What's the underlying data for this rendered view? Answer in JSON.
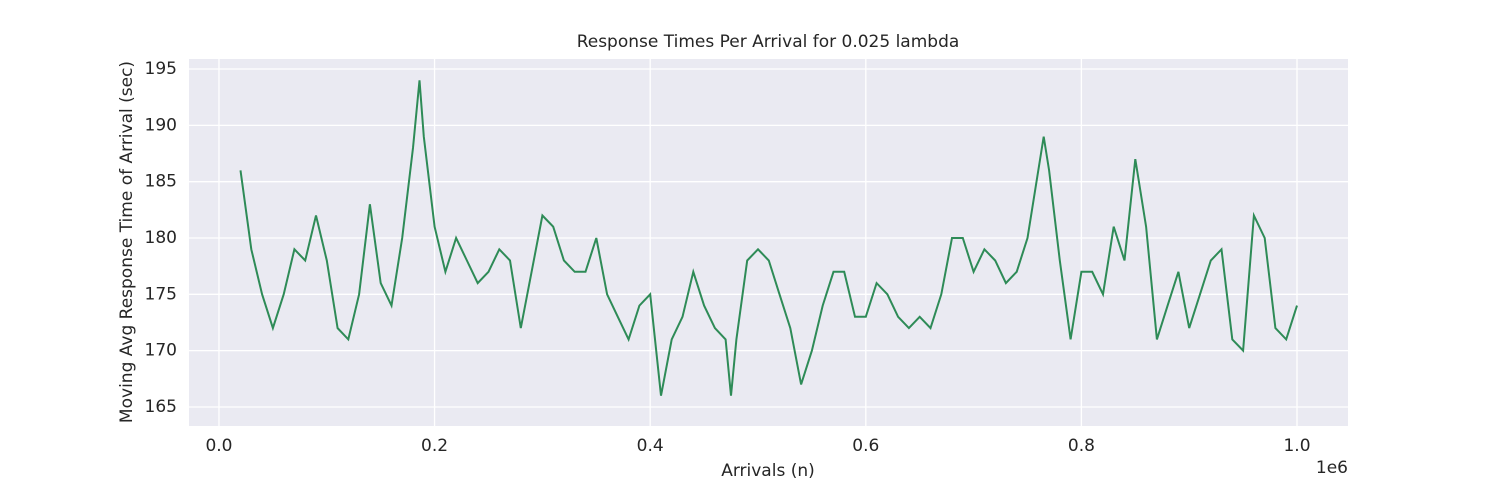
{
  "chart_data": {
    "type": "line",
    "title": "Response Times Per Arrival for 0.025 lambda",
    "xlabel": "Arrivals (n)",
    "ylabel": "Moving Avg Response Time of Arrival (sec)",
    "x_offset_label": "1e6",
    "x": [
      0.02,
      0.03,
      0.04,
      0.05,
      0.06,
      0.07,
      0.08,
      0.09,
      0.1,
      0.11,
      0.12,
      0.13,
      0.14,
      0.15,
      0.16,
      0.17,
      0.18,
      0.186,
      0.19,
      0.2,
      0.21,
      0.22,
      0.23,
      0.24,
      0.25,
      0.26,
      0.27,
      0.28,
      0.29,
      0.3,
      0.31,
      0.32,
      0.33,
      0.34,
      0.35,
      0.36,
      0.37,
      0.38,
      0.39,
      0.4,
      0.41,
      0.42,
      0.43,
      0.44,
      0.45,
      0.46,
      0.47,
      0.475,
      0.48,
      0.49,
      0.5,
      0.51,
      0.52,
      0.53,
      0.54,
      0.55,
      0.56,
      0.57,
      0.58,
      0.59,
      0.6,
      0.61,
      0.62,
      0.63,
      0.64,
      0.65,
      0.66,
      0.67,
      0.68,
      0.69,
      0.7,
      0.71,
      0.72,
      0.73,
      0.74,
      0.75,
      0.76,
      0.765,
      0.77,
      0.78,
      0.79,
      0.8,
      0.81,
      0.82,
      0.83,
      0.84,
      0.85,
      0.86,
      0.87,
      0.88,
      0.89,
      0.9,
      0.91,
      0.92,
      0.93,
      0.94,
      0.95,
      0.96,
      0.97,
      0.98,
      0.99,
      1.0
    ],
    "series": [
      {
        "color": "#2e8b57",
        "values": [
          186,
          179,
          175,
          172,
          175,
          179,
          178,
          182,
          178,
          172,
          171,
          175,
          183,
          176,
          174,
          180,
          188,
          194,
          189,
          181,
          177,
          180,
          178,
          176,
          177,
          179,
          178,
          172,
          177,
          182,
          181,
          178,
          177,
          177,
          180,
          175,
          173,
          171,
          174,
          175,
          166,
          171,
          173,
          177,
          174,
          172,
          171,
          166,
          171,
          178,
          179,
          178,
          175,
          172,
          167,
          170,
          174,
          177,
          177,
          173,
          173,
          176,
          175,
          173,
          172,
          173,
          172,
          175,
          180,
          180,
          177,
          179,
          178,
          176,
          177,
          180,
          186,
          189,
          186,
          178,
          171,
          177,
          177,
          175,
          181,
          178,
          187,
          181,
          171,
          174,
          177,
          172,
          175,
          178,
          179,
          171,
          170,
          182,
          180,
          172,
          171,
          174
        ]
      }
    ],
    "xlim": [
      -0.0278,
      1.0473
    ],
    "ylim": [
      163.31,
      195.89
    ],
    "xticks": [
      {
        "value": 0,
        "label": "0.0"
      },
      0.2,
      0.4,
      0.6,
      0.8,
      {
        "value": 1,
        "label": "1.0"
      }
    ],
    "yticks": [
      165,
      170,
      175,
      180,
      185,
      190,
      195
    ],
    "grid": true
  }
}
